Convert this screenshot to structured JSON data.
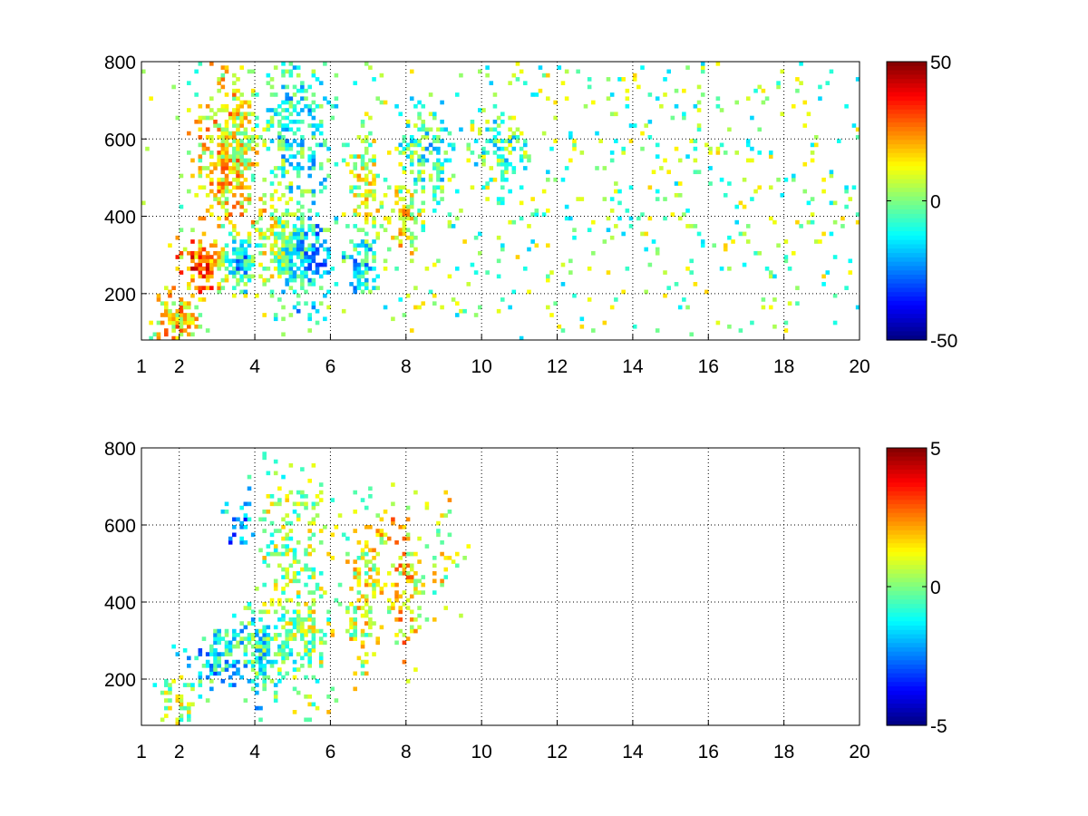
{
  "chart_data": [
    {
      "type": "heatmap",
      "title": "",
      "xlabel": "",
      "ylabel": "",
      "xlim": [
        1,
        20
      ],
      "ylim": [
        80,
        800
      ],
      "x_ticks": [
        "1",
        "2",
        "4",
        "6",
        "8",
        "10",
        "12",
        "14",
        "16",
        "18",
        "20"
      ],
      "x_tick_values": [
        1,
        2,
        4,
        6,
        8,
        10,
        12,
        14,
        16,
        18,
        20
      ],
      "y_ticks": [
        "200",
        "400",
        "600",
        "800"
      ],
      "y_tick_values": [
        200,
        400,
        600,
        800
      ],
      "grid": true,
      "colormap": "jet",
      "colorbar": {
        "min": -50,
        "max": 50,
        "tick_labels": [
          "50",
          "0",
          "-50"
        ],
        "tick_values": [
          50,
          0,
          -50
        ],
        "placement": "right"
      },
      "clusters": [
        {
          "x": 2.0,
          "y": 140,
          "sx": 0.35,
          "sy": 40,
          "value": 18,
          "density": 0.8
        },
        {
          "x": 2.8,
          "y": 275,
          "sx": 0.45,
          "sy": 45,
          "value": 35,
          "density": 0.9
        },
        {
          "x": 3.6,
          "y": 285,
          "sx": 0.35,
          "sy": 40,
          "value": -40,
          "density": 0.9
        },
        {
          "x": 3.4,
          "y": 560,
          "sx": 0.6,
          "sy": 130,
          "value": 18,
          "density": 0.7
        },
        {
          "x": 4.6,
          "y": 330,
          "sx": 0.5,
          "sy": 80,
          "value": 25,
          "density": 0.7
        },
        {
          "x": 5.2,
          "y": 300,
          "sx": 0.5,
          "sy": 90,
          "value": -35,
          "density": 0.8
        },
        {
          "x": 5.0,
          "y": 620,
          "sx": 0.6,
          "sy": 120,
          "value": -15,
          "density": 0.6
        },
        {
          "x": 6.8,
          "y": 280,
          "sx": 0.3,
          "sy": 50,
          "value": -25,
          "density": 0.8
        },
        {
          "x": 6.9,
          "y": 480,
          "sx": 0.3,
          "sy": 110,
          "value": 10,
          "density": 0.6
        },
        {
          "x": 8.0,
          "y": 400,
          "sx": 0.3,
          "sy": 70,
          "value": 22,
          "density": 0.6
        },
        {
          "x": 8.6,
          "y": 560,
          "sx": 0.5,
          "sy": 80,
          "value": -15,
          "density": 0.6
        },
        {
          "x": 10.5,
          "y": 580,
          "sx": 0.5,
          "sy": 60,
          "value": -8,
          "density": 0.6
        },
        {
          "x": 13.5,
          "y": 450,
          "sx": 6.0,
          "sy": 350,
          "value": 0,
          "density": 0.08
        }
      ]
    },
    {
      "type": "heatmap",
      "title": "",
      "xlabel": "",
      "ylabel": "",
      "xlim": [
        1,
        20
      ],
      "ylim": [
        80,
        800
      ],
      "x_ticks": [
        "1",
        "2",
        "4",
        "6",
        "8",
        "10",
        "12",
        "14",
        "16",
        "18",
        "20"
      ],
      "x_tick_values": [
        1,
        2,
        4,
        6,
        8,
        10,
        12,
        14,
        16,
        18,
        20
      ],
      "y_ticks": [
        "200",
        "400",
        "600",
        "800"
      ],
      "y_tick_values": [
        200,
        400,
        600,
        800
      ],
      "grid": true,
      "colormap": "jet",
      "colorbar": {
        "min": -5,
        "max": 5,
        "tick_labels": [
          "5",
          "0",
          "-5"
        ],
        "tick_values": [
          5,
          0,
          -5
        ],
        "placement": "right"
      },
      "clusters": [
        {
          "x": 2.0,
          "y": 150,
          "sx": 0.35,
          "sy": 40,
          "value": 0.5,
          "density": 0.5
        },
        {
          "x": 3.0,
          "y": 260,
          "sx": 0.5,
          "sy": 40,
          "value": -1.5,
          "density": 0.8
        },
        {
          "x": 4.3,
          "y": 280,
          "sx": 0.6,
          "sy": 60,
          "value": -1.0,
          "density": 0.8
        },
        {
          "x": 5.2,
          "y": 330,
          "sx": 0.45,
          "sy": 90,
          "value": 0.5,
          "density": 0.7
        },
        {
          "x": 3.6,
          "y": 600,
          "sx": 0.2,
          "sy": 40,
          "value": -2.0,
          "density": 0.6
        },
        {
          "x": 5.0,
          "y": 560,
          "sx": 0.5,
          "sy": 120,
          "value": 0.3,
          "density": 0.4
        },
        {
          "x": 6.9,
          "y": 420,
          "sx": 0.3,
          "sy": 120,
          "value": 0.8,
          "density": 0.6
        },
        {
          "x": 8.0,
          "y": 450,
          "sx": 0.3,
          "sy": 110,
          "value": 1.5,
          "density": 0.4
        },
        {
          "x": 8.8,
          "y": 520,
          "sx": 0.4,
          "sy": 90,
          "value": 0.8,
          "density": 0.3
        }
      ]
    }
  ]
}
